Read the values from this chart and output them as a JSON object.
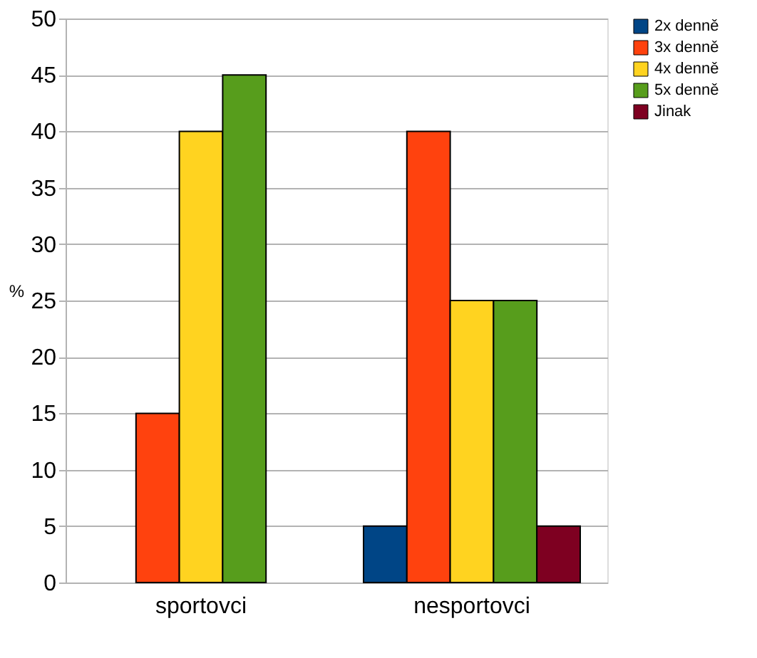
{
  "chart_data": {
    "type": "bar",
    "ylabel": "%",
    "categories": [
      "sportovci",
      "nesportovci"
    ],
    "series": [
      {
        "name": "2x denně",
        "color": "#004586",
        "values": [
          null,
          5
        ]
      },
      {
        "name": "3x denně",
        "color": "#ff420e",
        "values": [
          15,
          40
        ]
      },
      {
        "name": "4x denně",
        "color": "#ffd320",
        "values": [
          40,
          25
        ]
      },
      {
        "name": "5x denně",
        "color": "#579d1c",
        "values": [
          45,
          25
        ]
      },
      {
        "name": "Jinak",
        "color": "#7e0021",
        "values": [
          null,
          5
        ]
      }
    ],
    "ylim": [
      0,
      50
    ],
    "yticks": [
      0,
      5,
      10,
      15,
      20,
      25,
      30,
      35,
      40,
      45,
      50
    ],
    "grid": "y",
    "legend": "right"
  }
}
